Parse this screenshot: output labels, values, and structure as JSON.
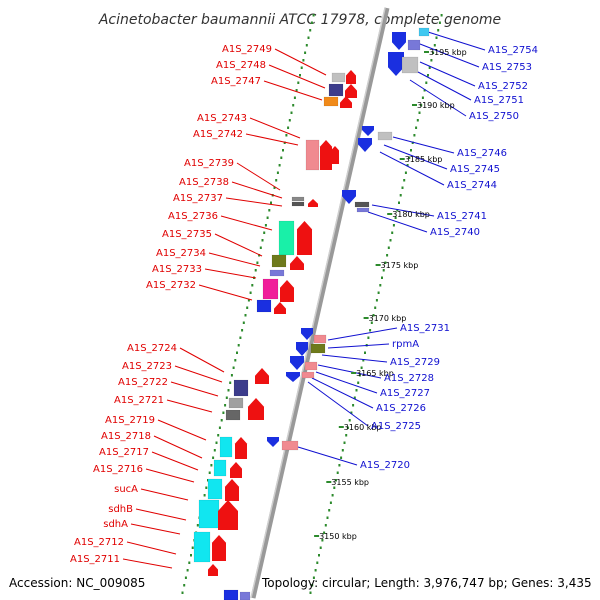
{
  "title": "Acinetobacter baumannii ATCC 17978, complete genome",
  "accession": "Accession: NC_009085",
  "topology": "Topology: circular; Length: 3,976,747 bp; Genes: 3,435",
  "colors": {
    "forward_label": "#e00000",
    "reverse_label": "#1010d0",
    "backbone": "#8c8c8c",
    "tick": "#2c8a2c",
    "arrow_forward": "#ee1111",
    "arrow_reverse": "#1a2fe0"
  },
  "scale_ticks": [
    {
      "text": "3195 kbp",
      "pos": 3195
    },
    {
      "text": "3190 kbp",
      "pos": 3190
    },
    {
      "text": "3185 kbp",
      "pos": 3185
    },
    {
      "text": "3180 kbp",
      "pos": 3180
    },
    {
      "text": "3175 kbp",
      "pos": 3175
    },
    {
      "text": "3170 kbp",
      "pos": 3170
    },
    {
      "text": "3165 kbp",
      "pos": 3165
    },
    {
      "text": "3160 kbp",
      "pos": 3160
    },
    {
      "text": "3155 kbp",
      "pos": 3155
    },
    {
      "text": "3150 kbp",
      "pos": 3150
    }
  ],
  "forward_genes": [
    "A1S_2749",
    "A1S_2748",
    "A1S_2747",
    "A1S_2743",
    "A1S_2742",
    "A1S_2739",
    "A1S_2738",
    "A1S_2737",
    "A1S_2736",
    "A1S_2735",
    "A1S_2734",
    "A1S_2733",
    "A1S_2732",
    "A1S_2724",
    "A1S_2723",
    "A1S_2722",
    "A1S_2721",
    "A1S_2719",
    "A1S_2718",
    "A1S_2717",
    "A1S_2716",
    "sucA",
    "sdhB",
    "sdhA",
    "A1S_2712",
    "A1S_2711"
  ],
  "reverse_genes": [
    "A1S_2754",
    "A1S_2753",
    "A1S_2752",
    "A1S_2751",
    "A1S_2750",
    "A1S_2746",
    "A1S_2745",
    "A1S_2744",
    "A1S_2741",
    "A1S_2740",
    "A1S_2731",
    "rpmA",
    "A1S_2729",
    "A1S_2728",
    "A1S_2727",
    "A1S_2726",
    "A1S_2725",
    "A1S_2720"
  ]
}
